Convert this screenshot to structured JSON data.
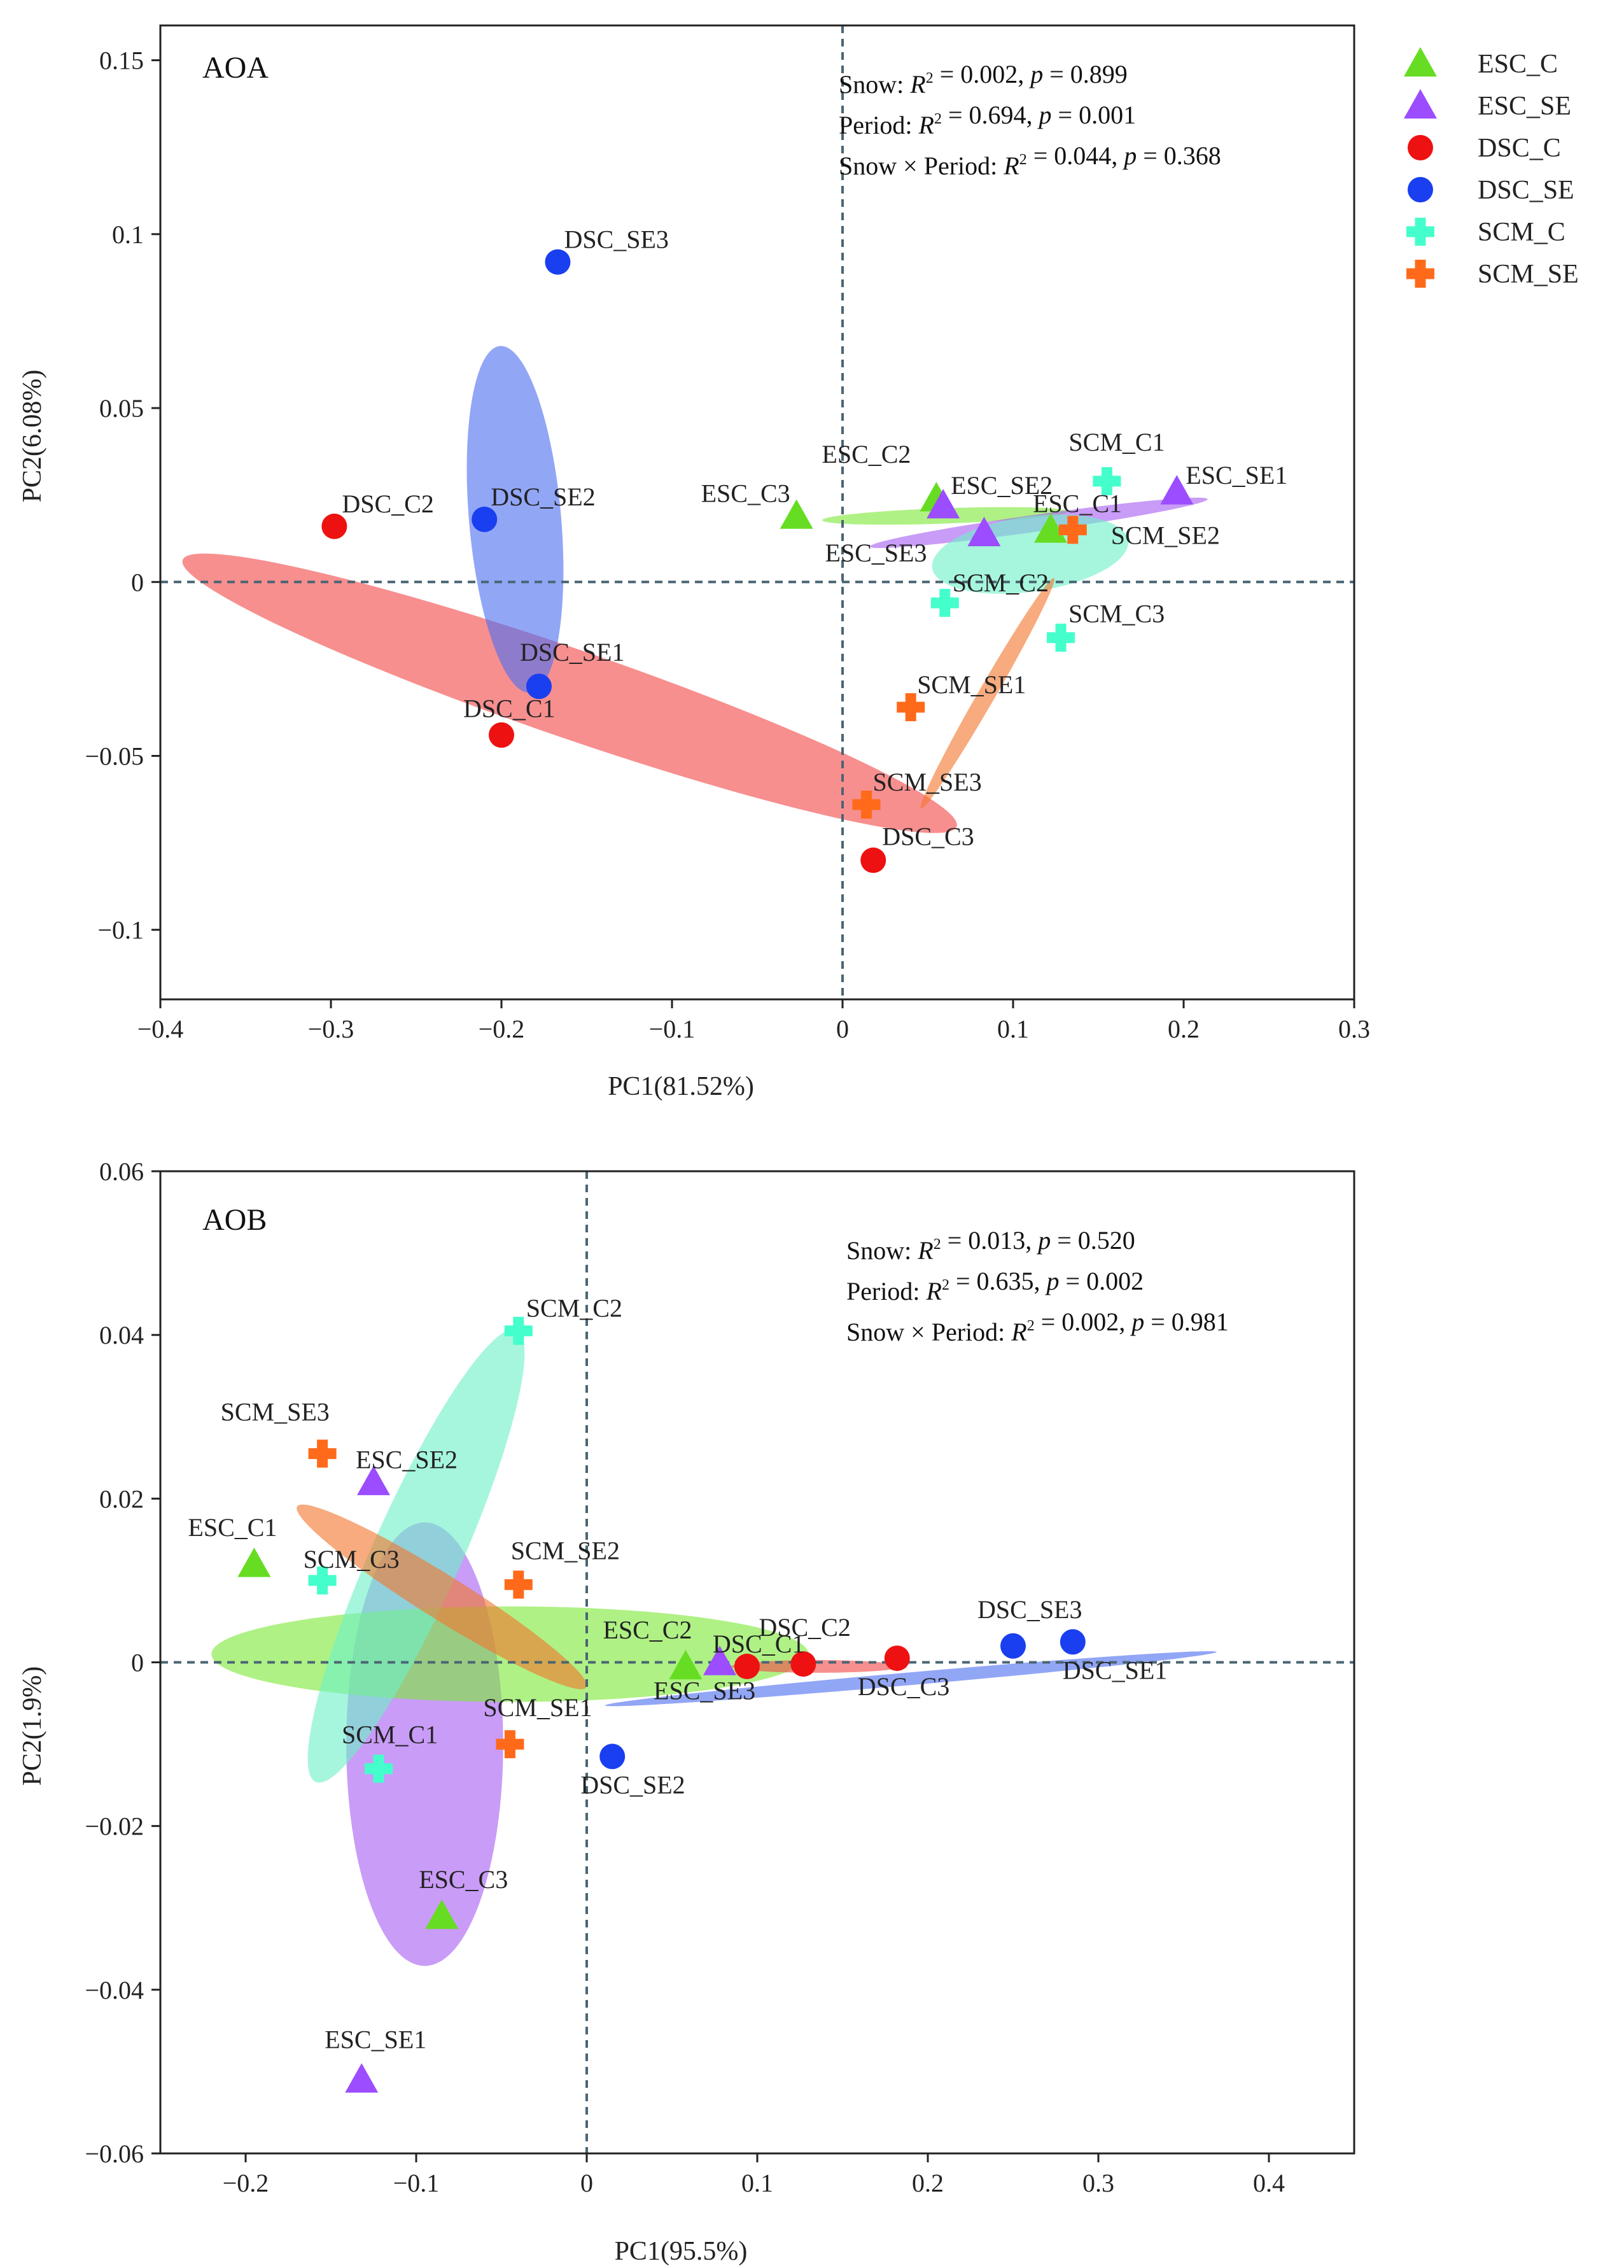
{
  "chart_data": [
    {
      "type": "scatter",
      "title": "AOA",
      "xlabel": "PC1(81.52%)",
      "ylabel": "PC2(6.08%)",
      "xlim": [
        -0.4,
        0.3
      ],
      "ylim": [
        -0.12,
        0.16
      ],
      "xticks": [
        -0.4,
        -0.3,
        -0.2,
        -0.1,
        0,
        0.1,
        0.2,
        0.3
      ],
      "xtick_labels": [
        "−0.4",
        "−0.3",
        "−0.2",
        "−0.1",
        "0",
        "0.1",
        "0.2",
        "0.3"
      ],
      "yticks": [
        0.15,
        0.1,
        0.05,
        0,
        -0.05,
        -0.1
      ],
      "ytick_labels": [
        "0.15",
        "0.1",
        "0.05",
        "0",
        "−0.05",
        "−0.1"
      ],
      "stats": [
        {
          "term": "Snow",
          "r2": "0.002",
          "p": "0.899"
        },
        {
          "term": "Period",
          "r2": "0.694",
          "p": "0.001"
        },
        {
          "term": "Snow × Period",
          "r2": "0.044",
          "p": "0.368"
        }
      ],
      "ellipses": [
        {
          "group": "DSC_C",
          "cx": -0.16,
          "cy": -0.032,
          "rx": 0.24,
          "ry": 0.026,
          "angle_deg": -19
        },
        {
          "group": "DSC_SE",
          "cx": -0.192,
          "cy": 0.018,
          "rx": 0.102,
          "ry": 0.027,
          "angle_deg": 95
        },
        {
          "group": "ESC_C",
          "cx": 0.06,
          "cy": 0.019,
          "rx": 0.072,
          "ry": 0.0045,
          "angle_deg": 2
        },
        {
          "group": "ESC_SE",
          "cx": 0.115,
          "cy": 0.017,
          "rx": 0.1,
          "ry": 0.005,
          "angle_deg": 8
        },
        {
          "group": "SCM_C",
          "cx": 0.11,
          "cy": 0.008,
          "rx": 0.058,
          "ry": 0.022,
          "angle_deg": 8
        },
        {
          "group": "SCM_SE",
          "cx": 0.085,
          "cy": -0.032,
          "rx": 0.078,
          "ry": 0.005,
          "angle_deg": 60
        }
      ],
      "points": [
        {
          "label": "DSC_C1",
          "group": "DSC_C",
          "x": -0.2,
          "y": -0.044
        },
        {
          "label": "DSC_C2",
          "group": "DSC_C",
          "x": -0.298,
          "y": 0.016
        },
        {
          "label": "DSC_C3",
          "group": "DSC_C",
          "x": 0.018,
          "y": -0.08
        },
        {
          "label": "DSC_SE1",
          "group": "DSC_SE",
          "x": -0.178,
          "y": -0.03
        },
        {
          "label": "DSC_SE2",
          "group": "DSC_SE",
          "x": -0.21,
          "y": 0.018
        },
        {
          "label": "DSC_SE3",
          "group": "DSC_SE",
          "x": -0.167,
          "y": 0.092
        },
        {
          "label": "ESC_C1",
          "group": "ESC_C",
          "x": 0.122,
          "y": 0.015
        },
        {
          "label": "ESC_C2",
          "group": "ESC_C",
          "x": 0.055,
          "y": 0.024
        },
        {
          "label": "ESC_C3",
          "group": "ESC_C",
          "x": -0.027,
          "y": 0.019
        },
        {
          "label": "ESC_SE1",
          "group": "ESC_SE",
          "x": 0.196,
          "y": 0.026
        },
        {
          "label": "ESC_SE2",
          "group": "ESC_SE",
          "x": 0.059,
          "y": 0.022
        },
        {
          "label": "ESC_SE3",
          "group": "ESC_SE",
          "x": 0.083,
          "y": 0.014
        },
        {
          "label": "SCM_C1",
          "group": "SCM_C",
          "x": 0.155,
          "y": 0.029
        },
        {
          "label": "SCM_C2",
          "group": "SCM_C",
          "x": 0.06,
          "y": -0.006
        },
        {
          "label": "SCM_C3",
          "group": "SCM_C",
          "x": 0.128,
          "y": -0.016
        },
        {
          "label": "SCM_SE1",
          "group": "SCM_SE",
          "x": 0.04,
          "y": -0.036
        },
        {
          "label": "SCM_SE2",
          "group": "SCM_SE",
          "x": 0.135,
          "y": 0.015
        },
        {
          "label": "SCM_SE3",
          "group": "SCM_SE",
          "x": 0.014,
          "y": -0.064
        }
      ]
    },
    {
      "type": "scatter",
      "title": "AOB",
      "xlabel": "PC1(95.5%)",
      "ylabel": "PC2(1.9%)",
      "xlim": [
        -0.25,
        0.45
      ],
      "ylim": [
        -0.06,
        0.06
      ],
      "xticks": [
        -0.2,
        -0.1,
        0,
        0.1,
        0.2,
        0.3,
        0.4
      ],
      "xtick_labels": [
        "−0.2",
        "−0.1",
        "0",
        "0.1",
        "0.2",
        "0.3",
        "0.4"
      ],
      "yticks": [
        0.06,
        0.04,
        0.02,
        0,
        -0.02,
        -0.04,
        -0.06
      ],
      "ytick_labels": [
        "0.06",
        "0.04",
        "0.02",
        "0",
        "−0.02",
        "−0.04",
        "−0.06"
      ],
      "stats": [
        {
          "term": "Snow",
          "r2": "0.013",
          "p": "0.520"
        },
        {
          "term": "Period",
          "r2": "0.635",
          "p": "0.002"
        },
        {
          "term": "Snow × Period",
          "r2": "0.002",
          "p": "0.981"
        }
      ],
      "ellipses": [
        {
          "group": "ESC_SE",
          "cx": -0.095,
          "cy": -0.01,
          "rx": 0.13,
          "ry": 0.046,
          "angle_deg": 90
        },
        {
          "group": "ESC_C",
          "cx": -0.045,
          "cy": 0.001,
          "rx": 0.175,
          "ry": 0.028,
          "angle_deg": 0
        },
        {
          "group": "SCM_C",
          "cx": -0.1,
          "cy": 0.013,
          "rx": 0.145,
          "ry": 0.026,
          "angle_deg": 66
        },
        {
          "group": "SCM_SE",
          "cx": -0.085,
          "cy": 0.008,
          "rx": 0.1,
          "ry": 0.013,
          "angle_deg": -32
        },
        {
          "group": "DSC_C",
          "cx": 0.135,
          "cy": -0.0005,
          "rx": 0.05,
          "ry": 0.0012,
          "angle_deg": 0
        },
        {
          "group": "DSC_SE",
          "cx": 0.19,
          "cy": -0.002,
          "rx": 0.18,
          "ry": 0.0009,
          "angle_deg": 5
        }
      ],
      "points": [
        {
          "label": "DSC_C1",
          "group": "DSC_C",
          "x": 0.094,
          "y": -0.0005
        },
        {
          "label": "DSC_C2",
          "group": "DSC_C",
          "x": 0.127,
          "y": -0.0002
        },
        {
          "label": "DSC_C3",
          "group": "DSC_C",
          "x": 0.182,
          "y": 0.0005
        },
        {
          "label": "DSC_SE1",
          "group": "DSC_SE",
          "x": 0.285,
          "y": 0.0025
        },
        {
          "label": "DSC_SE2",
          "group": "DSC_SE",
          "x": 0.015,
          "y": -0.0115
        },
        {
          "label": "DSC_SE3",
          "group": "DSC_SE",
          "x": 0.25,
          "y": 0.002
        },
        {
          "label": "ESC_C1",
          "group": "ESC_C",
          "x": -0.195,
          "y": 0.012
        },
        {
          "label": "ESC_C2",
          "group": "ESC_C",
          "x": 0.058,
          "y": -0.0005
        },
        {
          "label": "ESC_C3",
          "group": "ESC_C",
          "x": -0.085,
          "y": -0.031
        },
        {
          "label": "ESC_SE1",
          "group": "ESC_SE",
          "x": -0.132,
          "y": -0.051
        },
        {
          "label": "ESC_SE2",
          "group": "ESC_SE",
          "x": -0.125,
          "y": 0.022
        },
        {
          "label": "ESC_SE3",
          "group": "ESC_SE",
          "x": 0.078,
          "y": 0.0
        },
        {
          "label": "SCM_C1",
          "group": "SCM_C",
          "x": -0.122,
          "y": -0.013
        },
        {
          "label": "SCM_C2",
          "group": "SCM_C",
          "x": -0.04,
          "y": 0.0405
        },
        {
          "label": "SCM_C3",
          "group": "SCM_C",
          "x": -0.155,
          "y": 0.01
        },
        {
          "label": "SCM_SE1",
          "group": "SCM_SE",
          "x": -0.045,
          "y": -0.01
        },
        {
          "label": "SCM_SE2",
          "group": "SCM_SE",
          "x": -0.04,
          "y": 0.0095
        },
        {
          "label": "SCM_SE3",
          "group": "SCM_SE",
          "x": -0.155,
          "y": 0.0255
        }
      ]
    }
  ],
  "legend": {
    "items": [
      {
        "group": "ESC_C",
        "label": "ESC_C",
        "marker": "triangle",
        "color": "#66dd22"
      },
      {
        "group": "ESC_SE",
        "label": "ESC_SE",
        "marker": "triangle",
        "color": "#9b4dff"
      },
      {
        "group": "DSC_C",
        "label": "DSC_C",
        "marker": "circle",
        "color": "#ee1111"
      },
      {
        "group": "DSC_SE",
        "label": "DSC_SE",
        "marker": "circle",
        "color": "#1a3ff0"
      },
      {
        "group": "SCM_C",
        "label": "SCM_C",
        "marker": "cross",
        "color": "#44ffcc"
      },
      {
        "group": "SCM_SE",
        "label": "SCM_SE",
        "marker": "cross",
        "color": "#ff6a1a"
      }
    ]
  },
  "ellipse_colors": {
    "ESC_C": "#7ee83a",
    "ESC_SE": "#a860f2",
    "DSC_C": "#f24a4a",
    "DSC_SE": "#4f6ff0",
    "SCM_C": "#6ff0c8",
    "SCM_SE": "#f2782e"
  }
}
